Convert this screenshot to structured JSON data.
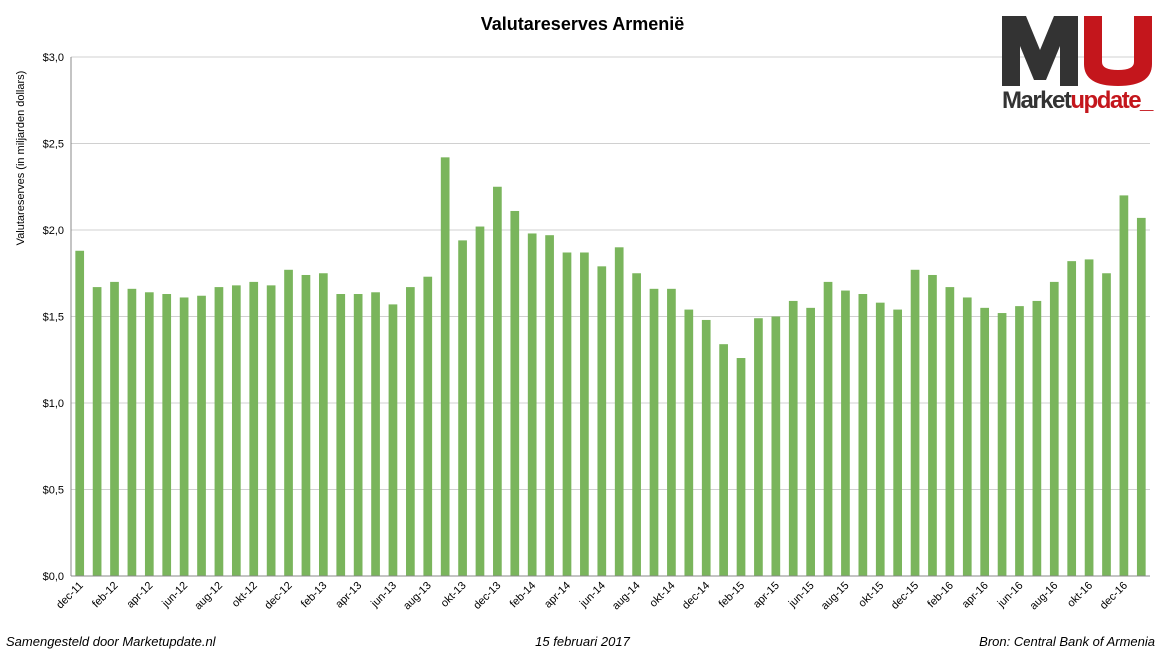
{
  "chart_data": {
    "type": "bar",
    "title": "Valutareserves Armenië",
    "ylabel": "Valutareserves (in miljarden dollars)",
    "xlabel": "",
    "ylim": [
      0,
      3.0
    ],
    "yticks": [
      "$0,0",
      "$0,5",
      "$1,0",
      "$1,5",
      "$2,0",
      "$2,5",
      "$3,0"
    ],
    "ytick_values": [
      0,
      0.5,
      1.0,
      1.5,
      2.0,
      2.5,
      3.0
    ],
    "grid": true,
    "bar_color": "#7ab55c",
    "categories": [
      "dec-11",
      "jan-12",
      "feb-12",
      "mrt-12",
      "apr-12",
      "mei-12",
      "jun-12",
      "jul-12",
      "aug-12",
      "sep-12",
      "okt-12",
      "nov-12",
      "dec-12",
      "jan-13",
      "feb-13",
      "mrt-13",
      "apr-13",
      "mei-13",
      "jun-13",
      "jul-13",
      "aug-13",
      "sep-13",
      "okt-13",
      "nov-13",
      "dec-13",
      "jan-14",
      "feb-14",
      "mrt-14",
      "apr-14",
      "mei-14",
      "jun-14",
      "jul-14",
      "aug-14",
      "sep-14",
      "okt-14",
      "nov-14",
      "dec-14",
      "jan-15",
      "feb-15",
      "mrt-15",
      "apr-15",
      "mei-15",
      "jun-15",
      "jul-15",
      "aug-15",
      "sep-15",
      "okt-15",
      "nov-15",
      "dec-15",
      "jan-16",
      "feb-16",
      "mrt-16",
      "apr-16",
      "mei-16",
      "jun-16",
      "jul-16",
      "aug-16",
      "sep-16",
      "okt-16",
      "nov-16",
      "dec-16",
      "jan-17"
    ],
    "values": [
      1.88,
      1.67,
      1.7,
      1.66,
      1.64,
      1.63,
      1.61,
      1.62,
      1.67,
      1.68,
      1.7,
      1.68,
      1.77,
      1.74,
      1.75,
      1.63,
      1.63,
      1.64,
      1.57,
      1.67,
      1.73,
      2.42,
      1.94,
      2.02,
      2.25,
      2.11,
      1.98,
      1.97,
      1.87,
      1.87,
      1.79,
      1.9,
      1.75,
      1.66,
      1.66,
      1.54,
      1.48,
      1.34,
      1.26,
      1.49,
      1.5,
      1.59,
      1.55,
      1.7,
      1.65,
      1.63,
      1.58,
      1.54,
      1.77,
      1.74,
      1.67,
      1.61,
      1.55,
      1.52,
      1.56,
      1.59,
      1.7,
      1.82,
      1.83,
      1.75,
      2.2,
      2.07
    ],
    "xtick_labels": [
      "dec-11",
      "feb-12",
      "apr-12",
      "jun-12",
      "aug-12",
      "okt-12",
      "dec-12",
      "feb-13",
      "apr-13",
      "jun-13",
      "aug-13",
      "okt-13",
      "dec-13",
      "feb-14",
      "apr-14",
      "jun-14",
      "aug-14",
      "okt-14",
      "dec-14",
      "feb-15",
      "apr-15",
      "jun-15",
      "aug-15",
      "okt-15",
      "dec-15",
      "feb-16",
      "apr-16",
      "jun-16",
      "aug-16",
      "okt-16",
      "dec-16"
    ]
  },
  "logo": {
    "letter_m": "M",
    "letter_u": "U",
    "word_dark": "Market",
    "word_red": "update_",
    "color_dark": "#333333",
    "color_red": "#c4161c"
  },
  "footer": {
    "left": "Samengesteld door Marketupdate.nl",
    "center": "15 februari 2017",
    "right": "Bron: Central Bank of Armenia"
  }
}
